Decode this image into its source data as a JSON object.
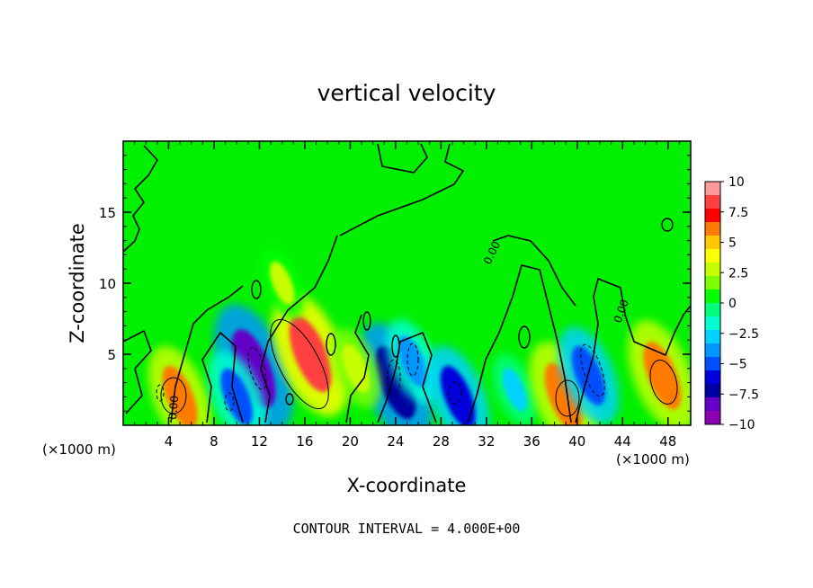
{
  "chart_data": {
    "type": "heatmap",
    "title": "vertical velocity",
    "xlabel": "X-coordinate",
    "ylabel": "Z-coordinate",
    "x_unit_left": "(×1000 m)",
    "x_unit_right": "(×1000 m)",
    "xlim": [
      0,
      50
    ],
    "ylim": [
      0,
      20
    ],
    "x_ticks": [
      "4",
      "8",
      "12",
      "16",
      "20",
      "24",
      "28",
      "32",
      "36",
      "40",
      "44",
      "48"
    ],
    "x_tick_values": [
      4,
      8,
      12,
      16,
      20,
      24,
      28,
      32,
      36,
      40,
      44,
      48
    ],
    "y_ticks": [
      "5",
      "10",
      "15"
    ],
    "y_tick_values": [
      5,
      10,
      15
    ],
    "colorbar": {
      "labels": [
        "10",
        "7.5",
        "5",
        "2.5",
        "0",
        "−2.5",
        "−5",
        "−7.5",
        "−10"
      ],
      "values": [
        10,
        7.5,
        5,
        2.5,
        0,
        -2.5,
        -5,
        -7.5,
        -10
      ],
      "colors": [
        "#ff9a9a",
        "#ff4040",
        "#ff0000",
        "#ff7a00",
        "#ffc800",
        "#ffff00",
        "#c8ff00",
        "#7dff00",
        "#00ff00",
        "#00ff7d",
        "#00ffd2",
        "#00d2ff",
        "#0096ff",
        "#0050ff",
        "#0000dc",
        "#0000a0",
        "#6400c8",
        "#8c00b4"
      ]
    },
    "contour_labels": [
      "0.00",
      "0.00",
      "0.00"
    ],
    "features": [
      {
        "x": 5.0,
        "z": 2.0,
        "value": 6
      },
      {
        "x": 11.5,
        "z": 4.0,
        "value": -9
      },
      {
        "x": 10.0,
        "z": 2.0,
        "value": -5
      },
      {
        "x": 16.5,
        "z": 5.0,
        "value": 8.5
      },
      {
        "x": 24.0,
        "z": 3.0,
        "value": -8
      },
      {
        "x": 25.5,
        "z": 4.5,
        "value": -4
      },
      {
        "x": 29.5,
        "z": 2.0,
        "value": -6
      },
      {
        "x": 34.5,
        "z": 2.5,
        "value": -2.5
      },
      {
        "x": 38.8,
        "z": 2.0,
        "value": 7
      },
      {
        "x": 41.0,
        "z": 3.5,
        "value": -5.5
      },
      {
        "x": 47.5,
        "z": 3.5,
        "value": 7
      },
      {
        "x": 14.0,
        "z": 10.0,
        "value": 2.5
      },
      {
        "x": 20.5,
        "z": 4.0,
        "value": 3.5
      }
    ],
    "annotation": "CONTOUR INTERVAL = 4.000E+00"
  }
}
